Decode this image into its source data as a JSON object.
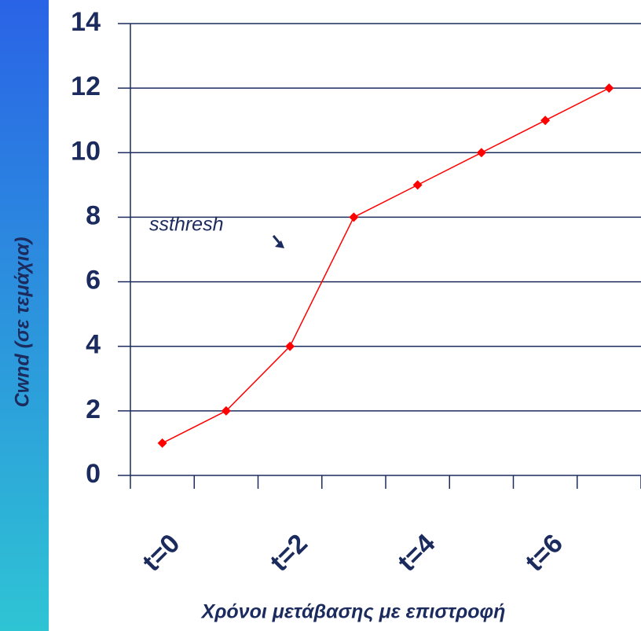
{
  "chart_data": {
    "type": "line",
    "ylabel": "Cwnd (σε τεμάχια)",
    "xlabel": "Χρόνοι μετάβασης με επιστροφή",
    "annotation": "ssthresh",
    "categories": [
      "t=0",
      null,
      "t=2",
      null,
      "t=4",
      null,
      "t=6",
      null
    ],
    "values": [
      1,
      2,
      4,
      8,
      9,
      10,
      11,
      12
    ],
    "color": "#ff0000",
    "ylim": [
      0,
      14
    ],
    "yticks": [
      0,
      2,
      4,
      6,
      8,
      10,
      12,
      14
    ],
    "grid": true
  }
}
